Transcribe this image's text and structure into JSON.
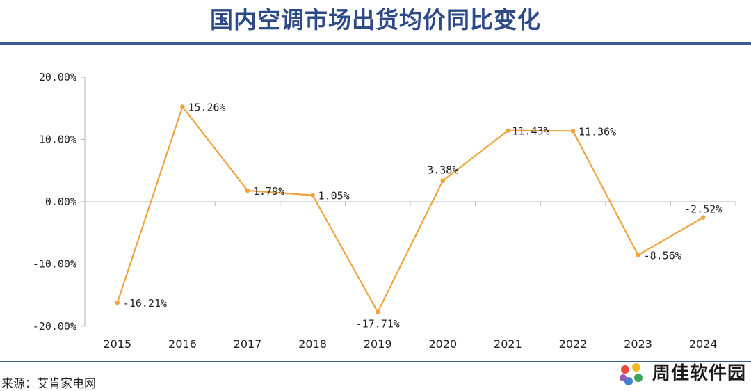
{
  "colors": {
    "title": "#2d4a86",
    "rule": "#3c5a93",
    "line": "#f0a33d",
    "axis": "#b5b5b5",
    "text": "#222222"
  },
  "title": "国内空调市场出货均价同比变化",
  "source": "来源：艾肯家电网",
  "watermark": "周佳软件园",
  "chart_data": {
    "type": "line",
    "title": "国内空调市场出货均价同比变化",
    "xlabel": "",
    "ylabel": "",
    "ylim": [
      -20,
      20
    ],
    "y_ticks": [
      20,
      10,
      0,
      -10,
      -20
    ],
    "y_tick_labels": [
      "20.00%",
      "10.00%",
      "0.00%",
      "-10.00%",
      "-20.00%"
    ],
    "grid": false,
    "categories": [
      "2015",
      "2016",
      "2017",
      "2018",
      "2019",
      "2020",
      "2021",
      "2022",
      "2023",
      "2024"
    ],
    "series": [
      {
        "values": [
          -16.21,
          15.26,
          1.79,
          1.05,
          -17.71,
          3.38,
          11.43,
          11.36,
          -8.56,
          -2.52
        ],
        "labels": [
          "-16.21%",
          "15.26%",
          "1.79%",
          "1.05%",
          "-17.71%",
          "3.38%",
          "11.43%",
          "11.36%",
          "-8.56%",
          "-2.52%"
        ]
      }
    ]
  }
}
